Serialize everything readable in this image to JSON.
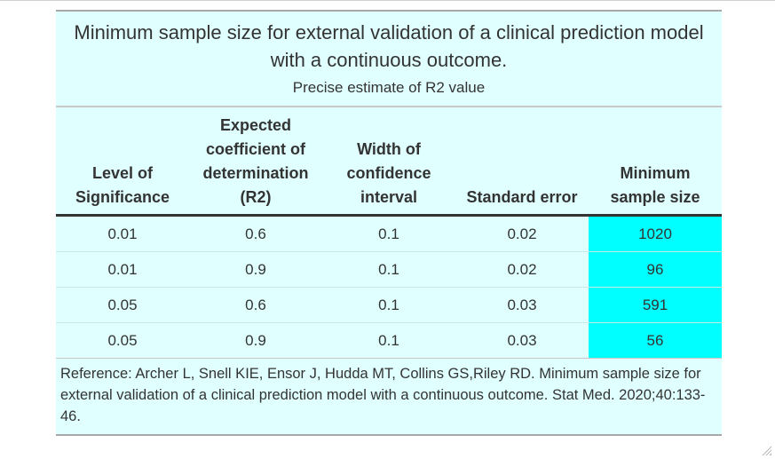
{
  "table": {
    "title": "Minimum sample size for external validation of a clinical prediction model with a continuous outcome.",
    "subtitle": "Precise estimate of R2 value",
    "columns": [
      [
        "Level of",
        "Significance"
      ],
      [
        "Expected",
        "coefficient of",
        "determination",
        "(R2)"
      ],
      [
        "Width of",
        "confidence",
        "interval"
      ],
      [
        "Standard error"
      ],
      [
        "Minimum",
        "sample size"
      ]
    ],
    "rows": [
      [
        "0.01",
        "0.6",
        "0.1",
        "0.02",
        "1020"
      ],
      [
        "0.01",
        "0.9",
        "0.1",
        "0.02",
        "96"
      ],
      [
        "0.05",
        "0.6",
        "0.1",
        "0.03",
        "591"
      ],
      [
        "0.05",
        "0.9",
        "0.1",
        "0.03",
        "56"
      ]
    ],
    "footnote": "Reference: Archer L, Snell KIE, Ensor J, Hudda MT, Collins GS,Riley RD. Minimum sample size for external validation of a clinical prediction model with a continuous outcome. Stat Med. 2020;40:133-46.",
    "colors": {
      "background": "#e0ffff",
      "highlight": "#00ffff",
      "text": "#333333"
    }
  }
}
